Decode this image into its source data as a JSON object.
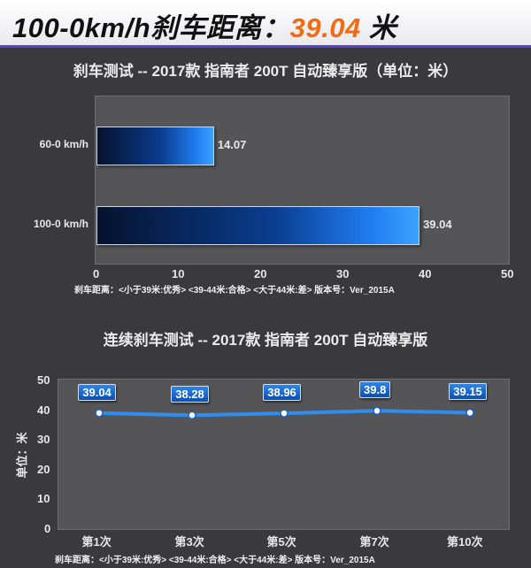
{
  "banner": {
    "title": "100-0km/h刹车距离：",
    "value": "39.04",
    "unit": " 米"
  },
  "colors": {
    "banner_value": "#f26a12",
    "bar_gradient_end": "#1f7cf0",
    "line": "#2e8ef0",
    "background": "#3a3a3c"
  },
  "chart_data": [
    {
      "type": "bar",
      "orientation": "horizontal",
      "title": "刹车测试 -- 2017款 指南者 200T 自动臻享版（单位：米）",
      "categories": [
        "60-0 km/h",
        "100-0 km/h"
      ],
      "values": [
        14.07,
        39.04
      ],
      "value_labels": [
        "14.07",
        "39.04"
      ],
      "xlim": [
        0,
        50
      ],
      "xticks": [
        "0",
        "10",
        "20",
        "30",
        "40",
        "50"
      ],
      "footer": "刹车距离：<小于39米:优秀>  <39-44米:合格>  <大于44米:差>    版本号：Ver_2015A",
      "grid": false
    },
    {
      "type": "line",
      "title": "连续刹车测试 -- 2017款 指南者 200T 自动臻享版",
      "categories": [
        "第1次",
        "第3次",
        "第5次",
        "第7次",
        "第10次"
      ],
      "values": [
        39.04,
        38.28,
        38.96,
        39.8,
        39.15
      ],
      "value_labels": [
        "39.04",
        "38.28",
        "38.96",
        "39.8",
        "39.15"
      ],
      "ylabel": "单位：米",
      "ylim": [
        0,
        50
      ],
      "yticks": [
        "0",
        "10",
        "20",
        "30",
        "40",
        "50"
      ],
      "footer": "刹车距离：<小于39米:优秀>  <39-44米:合格>  <大于44米:差>    版本号：Ver_2015A",
      "grid": false
    }
  ]
}
